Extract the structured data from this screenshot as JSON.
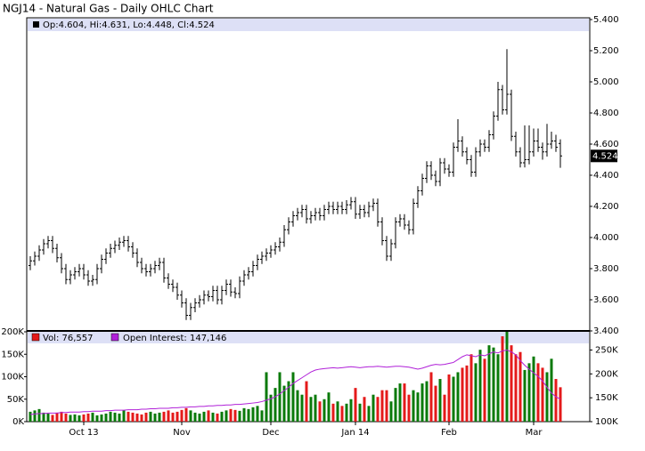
{
  "chart_data": [
    {
      "type": "ohlc",
      "title": "NGJ14 - Natural Gas - Daily OHLC Chart",
      "legend": "Op:4.604, Hi:4.631, Lo:4.448, Cl:4.524",
      "last_close_label": "4.524",
      "color": "#000000",
      "open": [
        3.82,
        3.85,
        3.88,
        3.92,
        3.96,
        3.98,
        3.93,
        3.87,
        3.8,
        3.73,
        3.76,
        3.78,
        3.8,
        3.76,
        3.72,
        3.73,
        3.8,
        3.86,
        3.9,
        3.93,
        3.95,
        3.97,
        3.98,
        3.94,
        3.9,
        3.84,
        3.8,
        3.78,
        3.8,
        3.82,
        3.84,
        3.74,
        3.7,
        3.68,
        3.63,
        3.58,
        3.5,
        3.55,
        3.58,
        3.6,
        3.63,
        3.62,
        3.66,
        3.6,
        3.66,
        3.7,
        3.65,
        3.64,
        3.72,
        3.76,
        3.78,
        3.82,
        3.86,
        3.88,
        3.9,
        3.92,
        3.94,
        3.97,
        4.05,
        4.1,
        4.14,
        4.16,
        4.18,
        4.12,
        4.14,
        4.16,
        4.14,
        4.18,
        4.2,
        4.18,
        4.2,
        4.18,
        4.21,
        4.23,
        4.15,
        4.18,
        4.16,
        4.2,
        4.22,
        4.1,
        3.98,
        3.88,
        3.96,
        4.1,
        4.12,
        4.08,
        4.05,
        4.22,
        4.3,
        4.38,
        4.46,
        4.4,
        4.36,
        4.48,
        4.44,
        4.42,
        4.58,
        4.62,
        4.55,
        4.5,
        4.42,
        4.55,
        4.6,
        4.58,
        4.66,
        4.78,
        4.95,
        4.82,
        4.92,
        4.65,
        4.55,
        4.48,
        4.5,
        4.55,
        4.62,
        4.58,
        4.55,
        4.6,
        4.62,
        4.604
      ],
      "high": [
        3.88,
        3.91,
        3.95,
        3.99,
        4.01,
        4.01,
        3.96,
        3.9,
        3.83,
        3.79,
        3.81,
        3.83,
        3.83,
        3.79,
        3.76,
        3.83,
        3.89,
        3.93,
        3.96,
        3.98,
        4.0,
        4.01,
        4.01,
        3.97,
        3.93,
        3.87,
        3.83,
        3.83,
        3.85,
        3.87,
        3.87,
        3.77,
        3.73,
        3.71,
        3.66,
        3.61,
        3.58,
        3.61,
        3.63,
        3.66,
        3.66,
        3.69,
        3.69,
        3.69,
        3.73,
        3.73,
        3.68,
        3.75,
        3.79,
        3.81,
        3.85,
        3.89,
        3.91,
        3.93,
        3.95,
        3.97,
        4.0,
        4.08,
        4.13,
        4.17,
        4.19,
        4.21,
        4.21,
        4.17,
        4.19,
        4.19,
        4.21,
        4.23,
        4.23,
        4.23,
        4.23,
        4.24,
        4.26,
        4.26,
        4.21,
        4.21,
        4.23,
        4.25,
        4.25,
        4.13,
        4.01,
        3.99,
        4.13,
        4.15,
        4.15,
        4.11,
        4.25,
        4.33,
        4.41,
        4.49,
        4.49,
        4.43,
        4.51,
        4.51,
        4.47,
        4.61,
        4.76,
        4.65,
        4.58,
        4.53,
        4.58,
        4.63,
        4.63,
        4.69,
        4.81,
        5.0,
        4.98,
        5.21,
        4.95,
        4.68,
        4.58,
        4.72,
        4.72,
        4.7,
        4.7,
        4.61,
        4.73,
        4.68,
        4.66,
        4.631
      ],
      "low": [
        3.79,
        3.82,
        3.85,
        3.89,
        3.93,
        3.9,
        3.84,
        3.77,
        3.7,
        3.7,
        3.73,
        3.75,
        3.73,
        3.69,
        3.69,
        3.7,
        3.77,
        3.83,
        3.87,
        3.9,
        3.92,
        3.94,
        3.91,
        3.87,
        3.81,
        3.77,
        3.75,
        3.75,
        3.77,
        3.79,
        3.71,
        3.67,
        3.65,
        3.6,
        3.55,
        3.47,
        3.47,
        3.52,
        3.55,
        3.57,
        3.59,
        3.59,
        3.57,
        3.57,
        3.63,
        3.62,
        3.61,
        3.61,
        3.69,
        3.73,
        3.75,
        3.79,
        3.83,
        3.85,
        3.87,
        3.89,
        3.91,
        3.94,
        4.02,
        4.07,
        4.11,
        4.13,
        4.09,
        4.09,
        4.11,
        4.11,
        4.11,
        4.15,
        4.15,
        4.15,
        4.15,
        4.15,
        4.18,
        4.12,
        4.12,
        4.13,
        4.13,
        4.17,
        4.07,
        3.95,
        3.85,
        3.85,
        3.93,
        4.07,
        4.05,
        4.02,
        4.02,
        4.19,
        4.27,
        4.35,
        4.37,
        4.33,
        4.33,
        4.41,
        4.39,
        4.39,
        4.55,
        4.52,
        4.47,
        4.39,
        4.39,
        4.52,
        4.55,
        4.55,
        4.63,
        4.75,
        4.79,
        4.79,
        4.62,
        4.52,
        4.45,
        4.45,
        4.47,
        4.52,
        4.55,
        4.5,
        4.52,
        4.57,
        4.55,
        4.448
      ],
      "close": [
        3.85,
        3.88,
        3.92,
        3.96,
        3.98,
        3.93,
        3.87,
        3.8,
        3.73,
        3.76,
        3.78,
        3.8,
        3.76,
        3.72,
        3.73,
        3.8,
        3.86,
        3.9,
        3.93,
        3.95,
        3.97,
        3.98,
        3.94,
        3.9,
        3.84,
        3.8,
        3.78,
        3.8,
        3.82,
        3.84,
        3.74,
        3.7,
        3.68,
        3.63,
        3.58,
        3.5,
        3.55,
        3.58,
        3.6,
        3.63,
        3.62,
        3.66,
        3.6,
        3.66,
        3.7,
        3.65,
        3.64,
        3.72,
        3.76,
        3.78,
        3.82,
        3.86,
        3.88,
        3.9,
        3.92,
        3.94,
        3.97,
        4.05,
        4.1,
        4.14,
        4.16,
        4.18,
        4.12,
        4.14,
        4.16,
        4.14,
        4.18,
        4.2,
        4.18,
        4.2,
        4.18,
        4.21,
        4.23,
        4.15,
        4.18,
        4.16,
        4.2,
        4.22,
        4.1,
        3.98,
        3.88,
        3.96,
        4.1,
        4.12,
        4.08,
        4.05,
        4.22,
        4.3,
        4.38,
        4.46,
        4.4,
        4.36,
        4.48,
        4.44,
        4.42,
        4.58,
        4.62,
        4.55,
        4.5,
        4.42,
        4.55,
        4.6,
        4.58,
        4.66,
        4.78,
        4.95,
        4.82,
        4.92,
        4.65,
        4.55,
        4.48,
        4.5,
        4.55,
        4.62,
        4.58,
        4.55,
        4.6,
        4.62,
        4.58,
        4.524
      ],
      "ylim": [
        3.4,
        5.4
      ],
      "yticks": [
        {
          "value": 3.4,
          "label": "3.400"
        },
        {
          "value": 3.6,
          "label": "3.600"
        },
        {
          "value": 3.8,
          "label": "3.800"
        },
        {
          "value": 4.0,
          "label": "4.000"
        },
        {
          "value": 4.2,
          "label": "4.200"
        },
        {
          "value": 4.4,
          "label": "4.400"
        },
        {
          "value": 4.6,
          "label": "4.600"
        },
        {
          "value": 4.8,
          "label": "4.800"
        },
        {
          "value": 5.0,
          "label": "5.000"
        },
        {
          "value": 5.2,
          "label": "5.200"
        },
        {
          "value": 5.4,
          "label": "5.400"
        }
      ]
    },
    {
      "type": "bar",
      "up_color": "#0a7a0a",
      "down_color": "#e41a1a",
      "categories": [
        null,
        null,
        null,
        null,
        null,
        null,
        null,
        null,
        null,
        null,
        null,
        null,
        "Oct 13",
        null,
        null,
        null,
        null,
        null,
        null,
        null,
        null,
        null,
        null,
        null,
        null,
        null,
        null,
        null,
        null,
        null,
        null,
        null,
        null,
        null,
        "Nov",
        null,
        null,
        null,
        null,
        null,
        null,
        null,
        null,
        null,
        null,
        null,
        null,
        null,
        null,
        null,
        null,
        null,
        null,
        null,
        "Dec",
        null,
        null,
        null,
        null,
        null,
        null,
        null,
        null,
        null,
        null,
        null,
        null,
        null,
        null,
        null,
        null,
        null,
        null,
        "Jan 14",
        null,
        null,
        null,
        null,
        null,
        null,
        null,
        null,
        null,
        null,
        null,
        null,
        null,
        null,
        null,
        null,
        null,
        null,
        null,
        null,
        "Feb",
        null,
        null,
        null,
        null,
        null,
        null,
        null,
        null,
        null,
        null,
        null,
        null,
        null,
        null,
        null,
        null,
        null,
        null,
        "Mar",
        null,
        null,
        null,
        null,
        null,
        null
      ],
      "series": [
        {
          "name": "Vol: 76,557",
          "color": "#e41a1a",
          "values": [
            22000,
            25000,
            28000,
            20000,
            18000,
            15000,
            20000,
            22000,
            18000,
            15000,
            16000,
            14000,
            16000,
            18000,
            20000,
            14000,
            16000,
            18000,
            22000,
            20000,
            18000,
            25000,
            22000,
            20000,
            18000,
            16000,
            20000,
            22000,
            18000,
            20000,
            22000,
            25000,
            20000,
            22000,
            26000,
            30000,
            25000,
            20000,
            18000,
            22000,
            25000,
            20000,
            18000,
            22000,
            25000,
            28000,
            26000,
            24000,
            30000,
            28000,
            32000,
            35000,
            25000,
            110000,
            60000,
            75000,
            110000,
            80000,
            90000,
            110000,
            70000,
            60000,
            90000,
            55000,
            60000,
            45000,
            50000,
            65000,
            40000,
            45000,
            35000,
            40000,
            50000,
            75000,
            40000,
            55000,
            35000,
            60000,
            55000,
            70000,
            70000,
            45000,
            75000,
            85000,
            85000,
            60000,
            70000,
            65000,
            85000,
            90000,
            110000,
            80000,
            95000,
            60000,
            105000,
            100000,
            110000,
            120000,
            125000,
            150000,
            130000,
            160000,
            140000,
            170000,
            165000,
            150000,
            190000,
            200000,
            170000,
            150000,
            155000,
            115000,
            130000,
            145000,
            130000,
            120000,
            110000,
            140000,
            95000,
            76557
          ]
        },
        {
          "name": "Open Interest: 147,146",
          "color": "#b020d8",
          "axis": "y2",
          "values": [
            115000,
            116000,
            117000,
            117000,
            118000,
            118000,
            118000,
            119000,
            119000,
            120000,
            120000,
            120000,
            121000,
            121000,
            122000,
            122000,
            122000,
            123000,
            123000,
            124000,
            124000,
            124000,
            125000,
            125000,
            125000,
            126000,
            126000,
            127000,
            127000,
            128000,
            128000,
            128000,
            129000,
            129000,
            130000,
            130000,
            131000,
            131000,
            132000,
            132000,
            133000,
            133000,
            134000,
            134000,
            135000,
            135000,
            136000,
            136000,
            137000,
            138000,
            139000,
            140000,
            142000,
            145000,
            148000,
            152000,
            158000,
            165000,
            172000,
            180000,
            186000,
            192000,
            198000,
            204000,
            208000,
            210000,
            211000,
            212000,
            213000,
            212000,
            213000,
            214000,
            215000,
            214000,
            213000,
            214000,
            215000,
            215000,
            216000,
            215000,
            214000,
            215000,
            216000,
            216000,
            215000,
            214000,
            212000,
            210000,
            212000,
            215000,
            218000,
            220000,
            219000,
            220000,
            222000,
            224000,
            230000,
            236000,
            240000,
            238000,
            236000,
            240000,
            238000,
            242000,
            246000,
            244000,
            248000,
            250000,
            246000,
            240000,
            228000,
            218000,
            210000,
            202000,
            195000,
            185000,
            172000,
            160000,
            152000,
            147146
          ]
        }
      ],
      "ylim": [
        0,
        200000
      ],
      "yticks": [
        {
          "value": 0,
          "label": "0K"
        },
        {
          "value": 50000,
          "label": "50K"
        },
        {
          "value": 100000,
          "label": "100K"
        },
        {
          "value": 150000,
          "label": "150K"
        },
        {
          "value": 200000,
          "label": "200K"
        }
      ],
      "y2lim": [
        100000,
        290000
      ],
      "y2ticks": [
        {
          "value": 100000,
          "label": "100K"
        },
        {
          "value": 150000,
          "label": "150K"
        },
        {
          "value": 200000,
          "label": "200K"
        },
        {
          "value": 250000,
          "label": "250K"
        }
      ]
    }
  ]
}
